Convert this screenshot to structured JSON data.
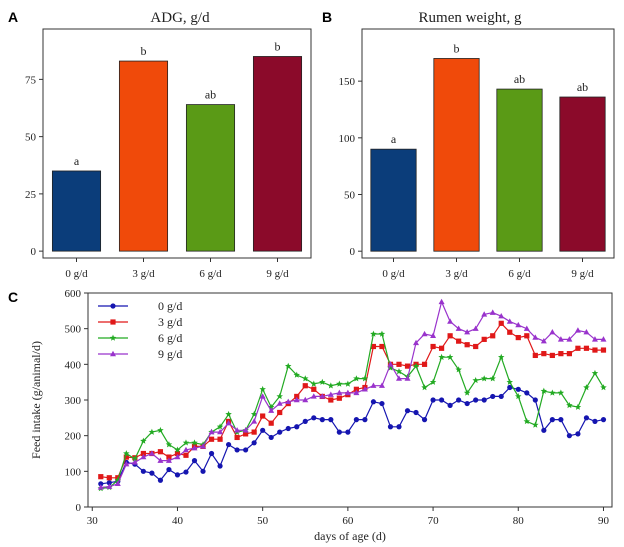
{
  "chart_data": [
    {
      "panel": "A",
      "type": "bar",
      "title": "ADG, g/d",
      "categories": [
        "0 g/d",
        "3 g/d",
        "6 g/d",
        "9 g/d"
      ],
      "values": [
        35,
        83,
        64,
        85
      ],
      "labels": [
        "a",
        "b",
        "ab",
        "b"
      ],
      "colors": [
        "#0b3d7a",
        "#f04a0a",
        "#5a9a16",
        "#8b0a2a"
      ],
      "ylim": [
        -3,
        97
      ],
      "yticks": [
        0,
        25,
        50,
        75
      ],
      "xlabel": "",
      "ylabel": ""
    },
    {
      "panel": "B",
      "type": "bar",
      "title": "Rumen weight, g",
      "categories": [
        "0 g/d",
        "3 g/d",
        "6 g/d",
        "9 g/d"
      ],
      "values": [
        90,
        170,
        143,
        136
      ],
      "labels": [
        "a",
        "b",
        "ab",
        "ab"
      ],
      "colors": [
        "#0b3d7a",
        "#f04a0a",
        "#5a9a16",
        "#8b0a2a"
      ],
      "ylim": [
        -6,
        196
      ],
      "yticks": [
        0,
        50,
        100,
        150
      ],
      "xlabel": "",
      "ylabel": ""
    },
    {
      "panel": "C",
      "type": "line",
      "xlabel": "days of age (d)",
      "ylabel": "Feed intake (g/animal/d)",
      "xlim": [
        29.5,
        91
      ],
      "ylim": [
        0,
        600
      ],
      "xticks": [
        30,
        40,
        50,
        60,
        70,
        80,
        90
      ],
      "yticks": [
        0,
        100,
        200,
        300,
        400,
        500,
        600
      ],
      "legend": "top-left",
      "x": [
        31,
        32,
        33,
        34,
        35,
        36,
        37,
        38,
        39,
        40,
        41,
        42,
        43,
        44,
        45,
        46,
        47,
        48,
        49,
        50,
        51,
        52,
        53,
        54,
        55,
        56,
        57,
        58,
        59,
        60,
        61,
        62,
        63,
        64,
        65,
        66,
        67,
        68,
        69,
        70,
        71,
        72,
        73,
        74,
        75,
        76,
        77,
        78,
        79,
        80,
        81,
        82,
        83,
        84,
        85,
        86,
        87,
        88,
        89,
        90
      ],
      "series": [
        {
          "name": "0 g/d",
          "color": "#1515b0",
          "marker": "circle",
          "values": [
            65,
            68,
            72,
            125,
            120,
            100,
            95,
            75,
            105,
            90,
            98,
            130,
            100,
            150,
            115,
            175,
            160,
            160,
            180,
            215,
            195,
            210,
            220,
            225,
            240,
            250,
            245,
            245,
            210,
            210,
            245,
            245,
            295,
            290,
            225,
            225,
            270,
            265,
            245,
            300,
            300,
            285,
            300,
            290,
            300,
            300,
            310,
            310,
            335,
            330,
            320,
            300,
            215,
            245,
            245,
            200,
            205,
            250,
            240,
            245
          ]
        },
        {
          "name": "3 g/d",
          "color": "#e01818",
          "marker": "square",
          "values": [
            85,
            82,
            82,
            140,
            138,
            150,
            150,
            155,
            140,
            150,
            145,
            170,
            170,
            190,
            190,
            240,
            195,
            205,
            210,
            255,
            235,
            265,
            290,
            310,
            340,
            330,
            310,
            300,
            305,
            315,
            330,
            335,
            450,
            450,
            400,
            400,
            395,
            400,
            400,
            450,
            445,
            480,
            465,
            455,
            450,
            470,
            480,
            515,
            490,
            475,
            480,
            425,
            430,
            425,
            430,
            430,
            445,
            445,
            440,
            440
          ]
        },
        {
          "name": "6 g/d",
          "color": "#22aa22",
          "marker": "star",
          "values": [
            52,
            55,
            75,
            150,
            135,
            185,
            210,
            215,
            175,
            160,
            180,
            180,
            175,
            210,
            225,
            260,
            210,
            215,
            260,
            330,
            280,
            310,
            395,
            370,
            360,
            345,
            350,
            340,
            345,
            345,
            360,
            360,
            485,
            485,
            390,
            380,
            365,
            395,
            335,
            350,
            420,
            420,
            385,
            320,
            355,
            360,
            360,
            420,
            350,
            310,
            240,
            230,
            325,
            320,
            320,
            285,
            280,
            335,
            375,
            335
          ]
        },
        {
          "name": "9 g/d",
          "color": "#9933cc",
          "marker": "triangle",
          "values": [
            55,
            57,
            65,
            120,
            125,
            140,
            150,
            130,
            130,
            140,
            160,
            165,
            170,
            210,
            210,
            235,
            215,
            215,
            240,
            310,
            270,
            290,
            295,
            300,
            300,
            310,
            310,
            315,
            320,
            320,
            320,
            330,
            340,
            340,
            400,
            360,
            360,
            460,
            485,
            480,
            575,
            520,
            500,
            490,
            500,
            540,
            545,
            535,
            520,
            510,
            500,
            475,
            465,
            490,
            470,
            470,
            495,
            490,
            470,
            470
          ]
        }
      ]
    }
  ]
}
